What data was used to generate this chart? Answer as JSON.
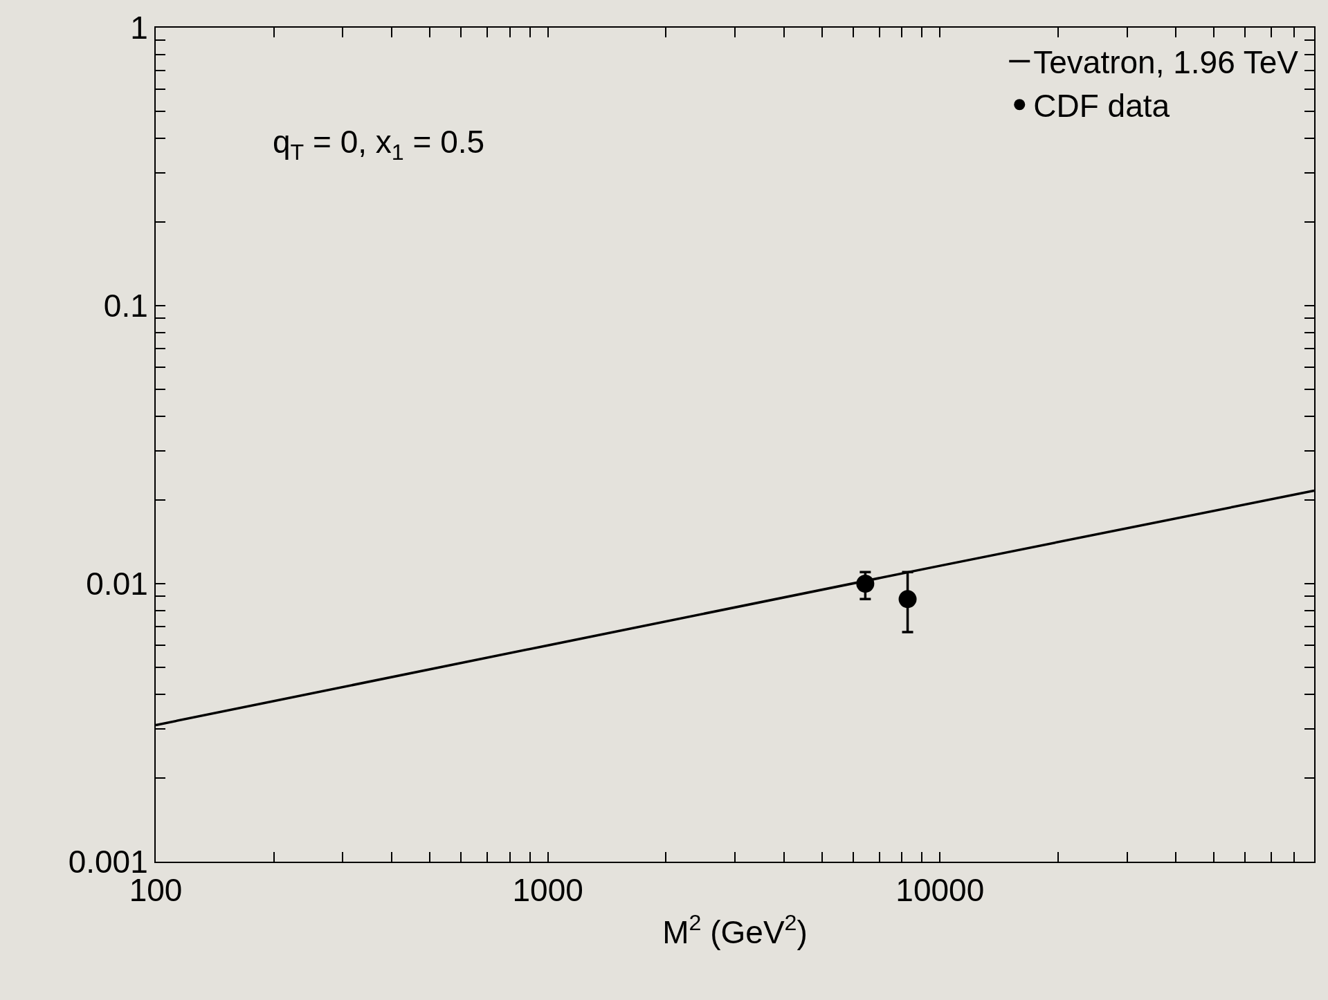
{
  "chart_data": {
    "type": "line",
    "xlabel": "M$^{2}$ (GeV$^{2}$)",
    "annotations": [
      "q$_{T}$ = 0, x$_{1}$ = 0.5"
    ],
    "log": "xy",
    "xlim": [
      100,
      90000
    ],
    "ylim": [
      0.001,
      1
    ],
    "xticks": [
      100,
      {
        "value": 200,
        "label": null
      },
      {
        "value": 300,
        "label": null
      },
      {
        "value": 400,
        "label": null
      },
      {
        "value": 500,
        "label": null
      },
      {
        "value": 600,
        "label": null
      },
      {
        "value": 700,
        "label": null
      },
      {
        "value": 800,
        "label": null
      },
      {
        "value": 900,
        "label": null
      },
      1000,
      {
        "value": 2000,
        "label": null
      },
      {
        "value": 3000,
        "label": null
      },
      {
        "value": 4000,
        "label": null
      },
      {
        "value": 5000,
        "label": null
      },
      {
        "value": 6000,
        "label": null
      },
      {
        "value": 7000,
        "label": null
      },
      {
        "value": 8000,
        "label": null
      },
      {
        "value": 9000,
        "label": null
      },
      10000,
      {
        "value": 20000,
        "label": null
      },
      {
        "value": 30000,
        "label": null
      },
      {
        "value": 40000,
        "label": null
      },
      {
        "value": 50000,
        "label": null
      },
      {
        "value": 60000,
        "label": null
      },
      {
        "value": 70000,
        "label": null
      },
      {
        "value": 80000,
        "label": null
      },
      {
        "value": 90000,
        "label": null
      }
    ],
    "yticks": [
      0.001,
      {
        "value": 0.002,
        "label": null
      },
      {
        "value": 0.003,
        "label": null
      },
      {
        "value": 0.004,
        "label": null
      },
      {
        "value": 0.005,
        "label": null
      },
      {
        "value": 0.006,
        "label": null
      },
      {
        "value": 0.007,
        "label": null
      },
      {
        "value": 0.008,
        "label": null
      },
      {
        "value": 0.009,
        "label": null
      },
      0.01,
      {
        "value": 0.02,
        "label": null
      },
      {
        "value": 0.03,
        "label": null
      },
      {
        "value": 0.04,
        "label": null
      },
      {
        "value": 0.05,
        "label": null
      },
      {
        "value": 0.06,
        "label": null
      },
      {
        "value": 0.07,
        "label": null
      },
      {
        "value": 0.08,
        "label": null
      },
      {
        "value": 0.09,
        "label": null
      },
      0.1,
      {
        "value": 0.2,
        "label": null
      },
      {
        "value": 0.3,
        "label": null
      },
      {
        "value": 0.4,
        "label": null
      },
      {
        "value": 0.5,
        "label": null
      },
      {
        "value": 0.6,
        "label": null
      },
      {
        "value": 0.7,
        "label": null
      },
      {
        "value": 0.8,
        "label": null
      },
      {
        "value": 0.9,
        "label": null
      },
      1
    ],
    "grid": false,
    "legend": "top right",
    "series": [
      {
        "name": "Tevatron, 1.96 TeV",
        "marker": "none",
        "color": "#000000",
        "x": [
          100,
          1000,
          10000,
          90000
        ],
        "values": [
          0.0031,
          0.006,
          0.0116,
          0.0216
        ]
      },
      {
        "name": "CDF data",
        "type": "scatter",
        "marker": "circle",
        "color": "#000000",
        "x": [
          6450,
          8270
        ],
        "values": [
          0.01,
          0.0088
        ],
        "errors": [
          [
            0.0088,
            0.011
          ],
          [
            0.0067,
            0.011
          ]
        ]
      }
    ]
  }
}
